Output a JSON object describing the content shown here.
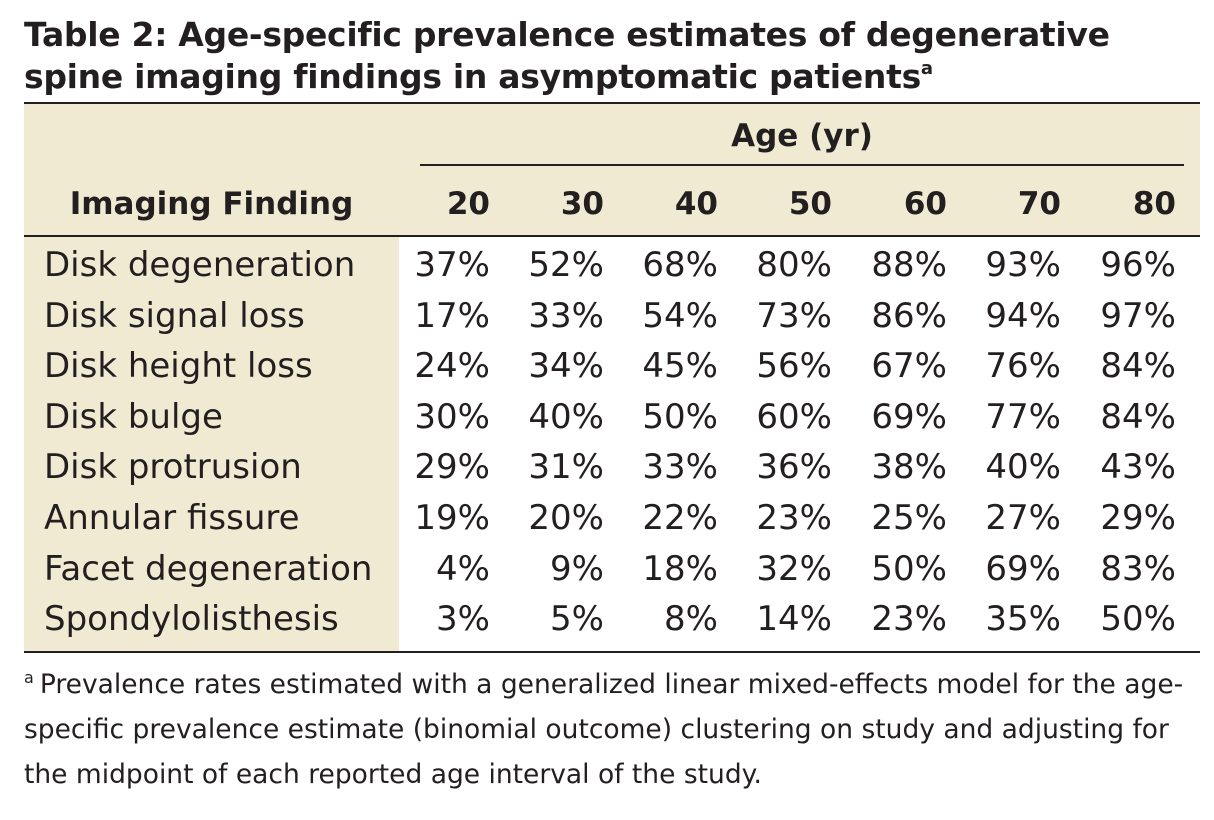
{
  "table": {
    "title": "Table 2: Age-specific prevalence estimates of degenerative spine imaging findings in asymptomatic patients",
    "title_superscript": "a",
    "age_group_label": "Age (yr)",
    "finding_header": "Imaging Finding",
    "ages": [
      "20",
      "30",
      "40",
      "50",
      "60",
      "70",
      "80"
    ],
    "rows": [
      {
        "finding": "Disk degeneration",
        "values": [
          "37%",
          "52%",
          "68%",
          "80%",
          "88%",
          "93%",
          "96%"
        ]
      },
      {
        "finding": "Disk signal loss",
        "values": [
          "17%",
          "33%",
          "54%",
          "73%",
          "86%",
          "94%",
          "97%"
        ]
      },
      {
        "finding": "Disk height loss",
        "values": [
          "24%",
          "34%",
          "45%",
          "56%",
          "67%",
          "76%",
          "84%"
        ]
      },
      {
        "finding": "Disk bulge",
        "values": [
          "30%",
          "40%",
          "50%",
          "60%",
          "69%",
          "77%",
          "84%"
        ]
      },
      {
        "finding": "Disk protrusion",
        "values": [
          "29%",
          "31%",
          "33%",
          "36%",
          "38%",
          "40%",
          "43%"
        ]
      },
      {
        "finding": "Annular fissure",
        "values": [
          "19%",
          "20%",
          "22%",
          "23%",
          "25%",
          "27%",
          "29%"
        ]
      },
      {
        "finding": "Facet degeneration",
        "values": [
          "4%",
          "9%",
          "18%",
          "32%",
          "50%",
          "69%",
          "83%"
        ]
      },
      {
        "finding": "Spondylolisthesis",
        "values": [
          "3%",
          "5%",
          "8%",
          "14%",
          "23%",
          "35%",
          "50%"
        ]
      }
    ],
    "footnote_marker": "a",
    "footnote": "Prevalence rates estimated with a generalized linear mixed-effects model for the age-specific prevalence estimate (binomial outcome) clustering on study and adjusting for the midpoint of each reported age interval of the study."
  },
  "colors": {
    "header_shade": "#f1ead3",
    "text": "#231f20",
    "rule": "#231f20"
  }
}
